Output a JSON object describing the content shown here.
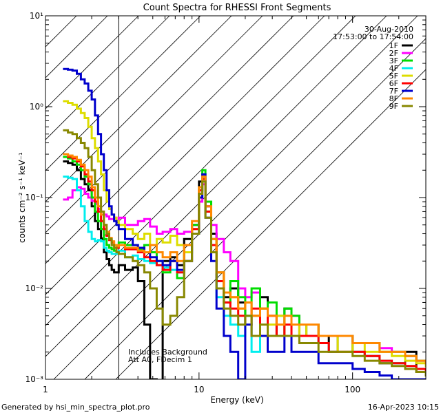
{
  "chart_data": {
    "type": "line",
    "title": "Count Spectra for RHESSI Front Segments",
    "xlabel": "Energy (keV)",
    "ylabel": "counts cm⁻² s⁻¹ keV⁻¹",
    "xscale": "log",
    "yscale": "log",
    "xlim": [
      1,
      300
    ],
    "ylim": [
      0.001,
      10
    ],
    "x_ticks": [
      {
        "value": 1,
        "label": "1"
      },
      {
        "value": 10,
        "label": "10"
      },
      {
        "value": 100,
        "label": "100"
      }
    ],
    "y_ticks": [
      {
        "value": 10,
        "label": "10¹"
      },
      {
        "value": 1,
        "label": "10⁰"
      },
      {
        "value": 0.1,
        "label": "10⁻¹"
      },
      {
        "value": 0.01,
        "label": "10⁻²"
      },
      {
        "value": 0.001,
        "label": "10⁻³"
      }
    ],
    "hatched_region": {
      "x_from": 1,
      "x_to": 3
    },
    "date": "30-Aug-2010",
    "time_range": "17:53:00 to 17:54:00",
    "annotations": [
      "Includes Background",
      "Att A0, FDecim 1"
    ],
    "footer_left": "Generated by hsi_min_spectra_plot.pro",
    "footer_right": "16-Apr-2023 10:15",
    "series": [
      {
        "name": "1F",
        "color": "#000000",
        "x": [
          1.3,
          1.4,
          1.5,
          1.6,
          1.7,
          1.8,
          1.9,
          2.0,
          2.1,
          2.2,
          2.3,
          2.4,
          2.5,
          2.6,
          2.7,
          2.8,
          2.9,
          3.0,
          3.3,
          3.7,
          4.0,
          4.4,
          4.8,
          5.3,
          5.8,
          6.5,
          7.2,
          8.0,
          9.0,
          10.0,
          10.5,
          11.0,
          12.0,
          13.0,
          14.5,
          16.0,
          18.0,
          20.0,
          22.0,
          25.0,
          28.0,
          32.0,
          36.0,
          40.0,
          45.0,
          50.0,
          60.0,
          70.0,
          80.0,
          100.0,
          120.0,
          150.0,
          180.0,
          220.0,
          260.0,
          300.0
        ],
        "y": [
          0.25,
          0.24,
          0.23,
          0.2,
          0.16,
          0.14,
          0.12,
          0.08,
          0.055,
          0.045,
          0.035,
          0.025,
          0.021,
          0.018,
          0.016,
          0.015,
          0.015,
          0.018,
          0.016,
          0.017,
          0.012,
          0.004,
          0.001,
          0.0002,
          0.02,
          0.022,
          0.018,
          0.035,
          0.05,
          0.15,
          0.18,
          0.08,
          0.04,
          0.015,
          0.008,
          0.01,
          0.007,
          0.004,
          0.005,
          0.008,
          0.004,
          0.003,
          0.006,
          0.004,
          0.003,
          0.004,
          0.003,
          0.002,
          0.003,
          0.002,
          0.0018,
          0.0015,
          0.0015,
          0.002,
          0.0012,
          0.0012
        ]
      },
      {
        "name": "2F",
        "color": "#ff00ff",
        "x": [
          1.3,
          1.4,
          1.5,
          1.6,
          1.7,
          1.8,
          1.9,
          2.0,
          2.1,
          2.2,
          2.3,
          2.4,
          2.5,
          2.6,
          2.7,
          2.8,
          2.9,
          3.0,
          3.3,
          3.7,
          4.0,
          4.4,
          4.8,
          5.3,
          5.8,
          6.5,
          7.2,
          8.0,
          9.0,
          10.0,
          10.5,
          11.0,
          12.0,
          13.0,
          14.5,
          16.0,
          18.0,
          20.0,
          22.0,
          25.0,
          28.0,
          32.0,
          36.0,
          40.0,
          45.0,
          50.0,
          60.0,
          70.0,
          80.0,
          100.0,
          120.0,
          150.0,
          180.0,
          220.0,
          260.0,
          300.0
        ],
        "y": [
          0.095,
          0.1,
          0.12,
          0.13,
          0.125,
          0.11,
          0.1,
          0.092,
          0.085,
          0.075,
          0.07,
          0.065,
          0.062,
          0.058,
          0.058,
          0.06,
          0.055,
          0.06,
          0.05,
          0.05,
          0.055,
          0.058,
          0.048,
          0.04,
          0.042,
          0.045,
          0.04,
          0.042,
          0.05,
          0.09,
          0.14,
          0.08,
          0.05,
          0.035,
          0.025,
          0.02,
          0.01,
          0.008,
          0.009,
          0.006,
          0.005,
          0.004,
          0.004,
          0.005,
          0.004,
          0.004,
          0.003,
          0.003,
          0.003,
          0.0025,
          0.0025,
          0.0022,
          0.002,
          0.0018,
          0.0016,
          0.0015
        ]
      },
      {
        "name": "3F",
        "color": "#00dd00",
        "x": [
          1.3,
          1.4,
          1.5,
          1.6,
          1.7,
          1.8,
          1.9,
          2.0,
          2.1,
          2.2,
          2.3,
          2.4,
          2.5,
          2.6,
          2.7,
          2.8,
          2.9,
          3.0,
          3.3,
          3.7,
          4.0,
          4.4,
          4.8,
          5.3,
          5.8,
          6.5,
          7.2,
          8.0,
          9.0,
          10.0,
          10.5,
          11.0,
          12.0,
          13.0,
          14.5,
          16.0,
          18.0,
          20.0,
          22.0,
          25.0,
          28.0,
          32.0,
          36.0,
          40.0,
          45.0,
          50.0,
          60.0,
          70.0,
          80.0,
          100.0,
          120.0,
          150.0,
          180.0,
          220.0,
          260.0,
          300.0
        ],
        "y": [
          0.28,
          0.27,
          0.25,
          0.23,
          0.2,
          0.17,
          0.14,
          0.1,
          0.07,
          0.055,
          0.045,
          0.035,
          0.03,
          0.028,
          0.027,
          0.026,
          0.028,
          0.032,
          0.03,
          0.03,
          0.027,
          0.03,
          0.025,
          0.02,
          0.015,
          0.02,
          0.013,
          0.025,
          0.05,
          0.12,
          0.2,
          0.09,
          0.035,
          0.012,
          0.007,
          0.012,
          0.008,
          0.005,
          0.01,
          0.006,
          0.007,
          0.005,
          0.006,
          0.005,
          0.004,
          0.004,
          0.003,
          0.003,
          0.003,
          0.0025,
          0.0025,
          0.002,
          0.002,
          0.0018,
          0.0016,
          0.0015
        ]
      },
      {
        "name": "4F",
        "color": "#00eeee",
        "x": [
          1.3,
          1.4,
          1.5,
          1.6,
          1.7,
          1.8,
          1.9,
          2.0,
          2.1,
          2.2,
          2.3,
          2.4,
          2.5,
          2.6,
          2.7,
          2.8,
          2.9,
          3.0,
          3.3,
          3.7,
          4.0,
          4.4,
          4.8,
          5.3,
          5.8,
          6.5,
          7.2,
          8.0,
          9.0,
          10.0,
          10.5,
          11.0,
          12.0,
          13.0,
          14.5,
          16.0,
          18.0,
          20.0,
          22.0,
          25.0,
          28.0,
          32.0,
          36.0,
          40.0,
          45.0,
          50.0,
          60.0,
          70.0,
          80.0,
          100.0,
          120.0,
          150.0,
          180.0,
          220.0,
          260.0,
          300.0
        ],
        "y": [
          0.17,
          0.165,
          0.16,
          0.12,
          0.08,
          0.055,
          0.042,
          0.035,
          0.033,
          0.034,
          0.033,
          0.028,
          0.026,
          0.025,
          0.024,
          0.024,
          0.024,
          0.026,
          0.022,
          0.023,
          0.021,
          0.02,
          0.019,
          0.018,
          0.017,
          0.016,
          0.015,
          0.02,
          0.04,
          0.1,
          0.16,
          0.07,
          0.025,
          0.008,
          0.005,
          0.004,
          0.003,
          0.005,
          0.002,
          0.004,
          0.003,
          0.003,
          0.004,
          0.003,
          0.003,
          0.003,
          0.0025,
          0.002,
          0.002,
          0.002,
          0.0018,
          0.0016,
          0.0015,
          0.0014,
          0.0013,
          0.0012
        ]
      },
      {
        "name": "5F",
        "color": "#dddd00",
        "x": [
          1.3,
          1.4,
          1.5,
          1.6,
          1.7,
          1.8,
          1.9,
          2.0,
          2.1,
          2.2,
          2.3,
          2.4,
          2.5,
          2.6,
          2.7,
          2.8,
          2.9,
          3.0,
          3.3,
          3.7,
          4.0,
          4.4,
          4.8,
          5.3,
          5.8,
          6.5,
          7.2,
          8.0,
          9.0,
          10.0,
          10.5,
          11.0,
          12.0,
          13.0,
          14.5,
          16.0,
          18.0,
          20.0,
          22.0,
          25.0,
          28.0,
          32.0,
          36.0,
          40.0,
          45.0,
          50.0,
          60.0,
          70.0,
          80.0,
          100.0,
          120.0,
          150.0,
          180.0,
          220.0,
          260.0,
          300.0
        ],
        "y": [
          1.15,
          1.1,
          1.05,
          0.95,
          0.85,
          0.75,
          0.6,
          0.45,
          0.35,
          0.25,
          0.18,
          0.12,
          0.09,
          0.075,
          0.065,
          0.06,
          0.055,
          0.05,
          0.045,
          0.04,
          0.035,
          0.04,
          0.03,
          0.035,
          0.032,
          0.038,
          0.03,
          0.025,
          0.045,
          0.13,
          0.17,
          0.07,
          0.035,
          0.015,
          0.009,
          0.008,
          0.006,
          0.007,
          0.005,
          0.006,
          0.004,
          0.005,
          0.003,
          0.004,
          0.003,
          0.004,
          0.003,
          0.003,
          0.002,
          0.0025,
          0.002,
          0.002,
          0.0018,
          0.0016,
          0.0015,
          0.0014
        ]
      },
      {
        "name": "6F",
        "color": "#ff0000",
        "x": [
          1.3,
          1.4,
          1.5,
          1.6,
          1.7,
          1.8,
          1.9,
          2.0,
          2.1,
          2.2,
          2.3,
          2.4,
          2.5,
          2.6,
          2.7,
          2.8,
          2.9,
          3.0,
          3.3,
          3.7,
          4.0,
          4.4,
          4.8,
          5.3,
          5.8,
          6.5,
          7.2,
          8.0,
          9.0,
          10.0,
          10.5,
          11.0,
          12.0,
          13.0,
          14.5,
          16.0,
          18.0,
          20.0,
          22.0,
          25.0,
          28.0,
          32.0,
          36.0,
          40.0,
          45.0,
          50.0,
          60.0,
          70.0,
          80.0,
          100.0,
          120.0,
          150.0,
          180.0,
          220.0,
          260.0,
          300.0
        ],
        "y": [
          0.3,
          0.28,
          0.27,
          0.25,
          0.22,
          0.18,
          0.15,
          0.12,
          0.09,
          0.07,
          0.055,
          0.045,
          0.038,
          0.034,
          0.032,
          0.03,
          0.028,
          0.03,
          0.027,
          0.027,
          0.025,
          0.022,
          0.02,
          0.018,
          0.016,
          0.02,
          0.015,
          0.02,
          0.045,
          0.12,
          0.16,
          0.07,
          0.03,
          0.012,
          0.007,
          0.006,
          0.005,
          0.004,
          0.006,
          0.003,
          0.005,
          0.003,
          0.004,
          0.003,
          0.003,
          0.003,
          0.0025,
          0.002,
          0.002,
          0.002,
          0.0018,
          0.0016,
          0.0015,
          0.0014,
          0.0013,
          0.0012
        ]
      },
      {
        "name": "7F",
        "color": "#0000cc",
        "x": [
          1.3,
          1.4,
          1.5,
          1.6,
          1.7,
          1.8,
          1.9,
          2.0,
          2.1,
          2.2,
          2.3,
          2.4,
          2.5,
          2.6,
          2.7,
          2.8,
          2.9,
          3.0,
          3.3,
          3.7,
          4.0,
          4.4,
          4.8,
          5.3,
          5.8,
          6.5,
          7.2,
          8.0,
          9.0,
          10.0,
          10.5,
          11.0,
          12.0,
          13.0,
          14.5,
          16.0,
          18.0,
          20.0,
          22.0,
          25.0,
          28.0,
          32.0,
          36.0,
          40.0,
          45.0,
          50.0,
          60.0,
          70.0,
          80.0,
          100.0,
          120.0,
          150.0,
          180.0,
          220.0,
          260.0,
          300.0
        ],
        "y": [
          2.6,
          2.55,
          2.5,
          2.3,
          2.0,
          1.8,
          1.5,
          1.2,
          0.8,
          0.5,
          0.3,
          0.2,
          0.12,
          0.08,
          0.065,
          0.055,
          0.05,
          0.045,
          0.035,
          0.03,
          0.028,
          0.025,
          0.022,
          0.02,
          0.018,
          0.02,
          0.016,
          0.02,
          0.04,
          0.1,
          0.18,
          0.06,
          0.02,
          0.006,
          0.003,
          0.002,
          0.001,
          0.004,
          0.003,
          0.003,
          0.002,
          0.002,
          0.003,
          0.002,
          0.002,
          0.002,
          0.0015,
          0.0015,
          0.0015,
          0.0013,
          0.0012,
          0.0011,
          0.001,
          0.001,
          0.001,
          0.001
        ]
      },
      {
        "name": "8F",
        "color": "#ff8800",
        "x": [
          1.3,
          1.4,
          1.5,
          1.6,
          1.7,
          1.8,
          1.9,
          2.0,
          2.1,
          2.2,
          2.3,
          2.4,
          2.5,
          2.6,
          2.7,
          2.8,
          2.9,
          3.0,
          3.3,
          3.7,
          4.0,
          4.4,
          4.8,
          5.3,
          5.8,
          6.5,
          7.2,
          8.0,
          9.0,
          10.0,
          10.5,
          11.0,
          12.0,
          13.0,
          14.5,
          16.0,
          18.0,
          20.0,
          22.0,
          25.0,
          28.0,
          32.0,
          36.0,
          40.0,
          45.0,
          50.0,
          60.0,
          70.0,
          80.0,
          100.0,
          120.0,
          150.0,
          180.0,
          220.0,
          260.0,
          300.0
        ],
        "y": [
          0.3,
          0.29,
          0.28,
          0.26,
          0.23,
          0.2,
          0.17,
          0.13,
          0.1,
          0.08,
          0.065,
          0.05,
          0.042,
          0.036,
          0.033,
          0.03,
          0.029,
          0.03,
          0.028,
          0.028,
          0.026,
          0.025,
          0.03,
          0.025,
          0.022,
          0.025,
          0.02,
          0.03,
          0.055,
          0.13,
          0.17,
          0.08,
          0.035,
          0.015,
          0.009,
          0.008,
          0.006,
          0.007,
          0.005,
          0.006,
          0.005,
          0.004,
          0.005,
          0.004,
          0.004,
          0.004,
          0.003,
          0.003,
          0.003,
          0.0025,
          0.0025,
          0.002,
          0.002,
          0.0018,
          0.0016,
          0.0015
        ]
      },
      {
        "name": "9F",
        "color": "#888800",
        "x": [
          1.3,
          1.4,
          1.5,
          1.6,
          1.7,
          1.8,
          1.9,
          2.0,
          2.1,
          2.2,
          2.3,
          2.4,
          2.5,
          2.6,
          2.7,
          2.8,
          2.9,
          3.0,
          3.3,
          3.7,
          4.0,
          4.4,
          4.8,
          5.3,
          5.8,
          6.5,
          7.2,
          8.0,
          9.0,
          10.0,
          10.5,
          11.0,
          12.0,
          13.0,
          14.5,
          16.0,
          18.0,
          20.0,
          22.0,
          25.0,
          28.0,
          32.0,
          36.0,
          40.0,
          45.0,
          50.0,
          60.0,
          70.0,
          80.0,
          100.0,
          120.0,
          150.0,
          180.0,
          220.0,
          260.0,
          300.0
        ],
        "y": [
          0.55,
          0.52,
          0.5,
          0.45,
          0.4,
          0.35,
          0.28,
          0.2,
          0.14,
          0.1,
          0.07,
          0.05,
          0.04,
          0.035,
          0.03,
          0.028,
          0.025,
          0.024,
          0.022,
          0.02,
          0.018,
          0.015,
          0.01,
          0.006,
          0.004,
          0.005,
          0.008,
          0.02,
          0.04,
          0.11,
          0.15,
          0.06,
          0.025,
          0.01,
          0.006,
          0.005,
          0.004,
          0.005,
          0.003,
          0.004,
          0.003,
          0.003,
          0.003,
          0.003,
          0.0025,
          0.0025,
          0.002,
          0.002,
          0.002,
          0.0018,
          0.0016,
          0.0015,
          0.0014,
          0.0013,
          0.0012,
          0.0011
        ]
      }
    ]
  }
}
